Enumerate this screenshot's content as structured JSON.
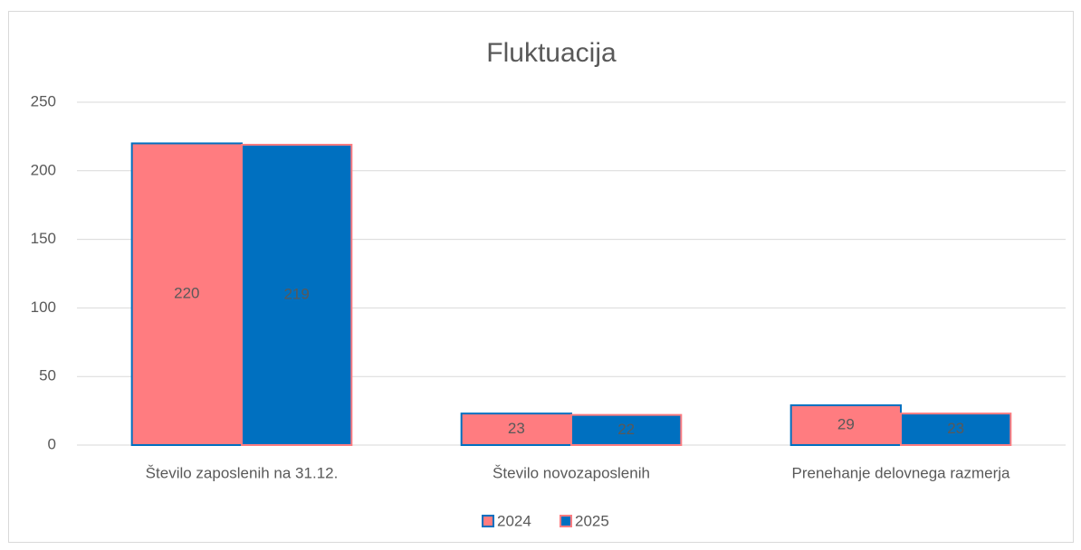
{
  "chart_data": {
    "type": "bar",
    "title": "Fluktuacija",
    "categories": [
      "Število zaposlenih na 31.12.",
      "Število novozaposlenih",
      "Prenehanje delovnega razmerja"
    ],
    "series": [
      {
        "name": "2024",
        "color": "#ff7c80",
        "edgecolor": "#0070c0",
        "values": [
          220,
          23,
          29
        ]
      },
      {
        "name": "2025",
        "color": "#0070c0",
        "edgecolor": "#ff7c80",
        "values": [
          219,
          22,
          23
        ]
      }
    ],
    "ylim": [
      0,
      250
    ],
    "yticks": [
      0,
      50,
      100,
      150,
      200,
      250
    ],
    "grid": true,
    "legend": "bottom"
  }
}
